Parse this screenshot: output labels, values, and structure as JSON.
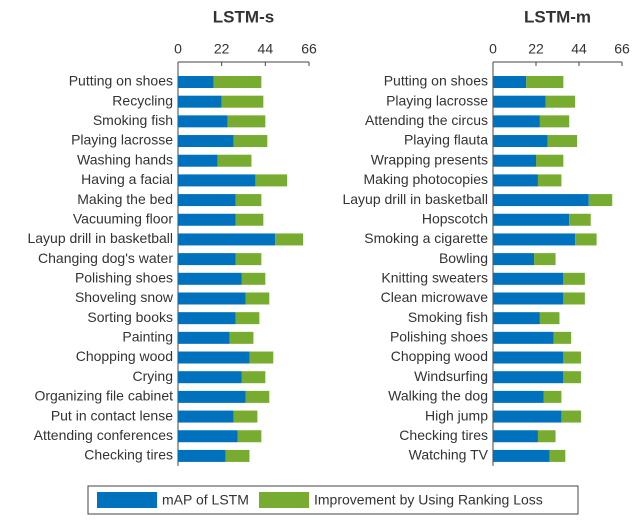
{
  "chart_data": [
    {
      "type": "bar",
      "orientation": "horizontal",
      "stacked": true,
      "title": "LSTM-s",
      "categories": [
        "Putting on shoes",
        "Recycling",
        "Smoking fish",
        "Playing lacrosse",
        "Washing hands",
        "Having a facial",
        "Making the bed",
        "Vacuuming floor",
        "Layup drill in basketball",
        "Changing dog's water",
        "Polishing shoes",
        "Shoveling snow",
        "Sorting books",
        "Painting",
        "Chopping wood",
        "Crying",
        "Organizing file cabinet",
        "Put in contact lense",
        "Attending conferences",
        "Checking tires"
      ],
      "series": [
        {
          "name": "mAP of LSTM",
          "color": "#0072bd",
          "values": [
            18,
            22,
            25,
            28,
            20,
            39,
            29,
            29,
            49,
            29,
            32,
            34,
            29,
            26,
            36,
            32,
            34,
            28,
            30,
            24
          ]
        },
        {
          "name": "Improvement by Using Ranking Loss",
          "color": "#77ac30",
          "values": [
            24,
            21,
            19,
            17,
            17,
            16,
            13,
            14,
            14,
            13,
            12,
            12,
            12,
            12,
            12,
            12,
            12,
            12,
            12,
            12
          ]
        }
      ],
      "xlim": [
        0,
        66
      ],
      "xticks": [
        0,
        22,
        44,
        66
      ]
    },
    {
      "type": "bar",
      "orientation": "horizontal",
      "stacked": true,
      "title": "LSTM-m",
      "categories": [
        "Putting on shoes",
        "Playing lacrosse",
        "Attending the circus",
        "Playing flauta",
        "Wrapping presents",
        "Making photocopies",
        "Layup drill in basketball",
        "Hopscotch",
        "Smoking a cigarette",
        "Bowling",
        "Knitting sweaters",
        "Clean microwave",
        "Smoking fish",
        "Polishing shoes",
        "Chopping wood",
        "Windsurfing",
        "Walking the dog",
        "High jump",
        "Checking tires",
        "Watching TV"
      ],
      "series": [
        {
          "color": "#0072bd",
          "values": [
            17,
            27,
            24,
            28,
            22,
            23,
            49,
            39,
            42,
            21,
            36,
            36,
            24,
            31,
            36,
            36,
            26,
            35,
            23,
            29
          ]
        },
        {
          "color": "#77ac30",
          "values": [
            19,
            15,
            15,
            15,
            14,
            12,
            12,
            11,
            11,
            11,
            11,
            11,
            10,
            9,
            9,
            9,
            9,
            10,
            9,
            8
          ]
        }
      ],
      "xlim": [
        0,
        66
      ],
      "xticks": [
        0,
        22,
        44,
        66
      ]
    }
  ]
}
